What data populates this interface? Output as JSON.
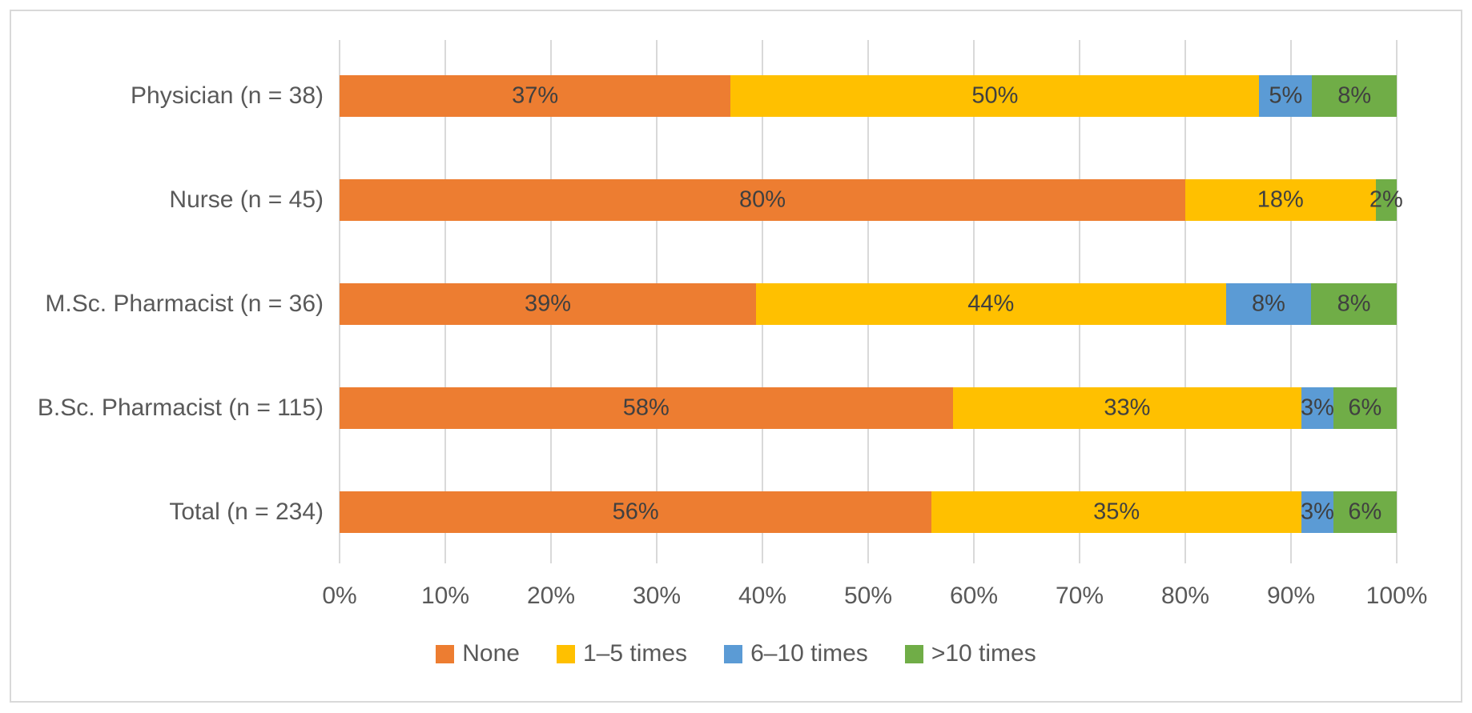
{
  "chart_data": {
    "type": "bar",
    "stacked": true,
    "percent_stacked": true,
    "orientation": "horizontal",
    "title": "",
    "categories": [
      "Physician (n = 38)",
      "Nurse (n = 45)",
      "M.Sc. Pharmacist (n = 36)",
      "B.Sc. Pharmacist (n = 115)",
      "Total (n = 234)"
    ],
    "series": [
      {
        "name": "None",
        "color": "#ED7D31",
        "values": [
          37,
          80,
          39,
          58,
          56
        ]
      },
      {
        "name": "1–5 times",
        "color": "#FFC000",
        "values": [
          50,
          18,
          44,
          33,
          35
        ]
      },
      {
        "name": "6–10 times",
        "color": "#5B9BD5",
        "values": [
          5,
          0,
          8,
          3,
          3
        ]
      },
      {
        "name": ">10 times",
        "color": "#70AD47",
        "values": [
          8,
          2,
          8,
          6,
          6
        ]
      }
    ],
    "data_label_suffix": "%",
    "x_ticks": [
      "0%",
      "10%",
      "20%",
      "30%",
      "40%",
      "50%",
      "60%",
      "70%",
      "80%",
      "90%",
      "100%"
    ],
    "xlabel": "",
    "ylabel": "",
    "xlim": [
      0,
      100
    ],
    "grid": true,
    "legend_position": "bottom"
  },
  "colors": {
    "background": "#FFFFFF",
    "frame_border": "#D9D9D9",
    "gridline": "#D9D9D9",
    "axis_text": "#595959",
    "data_label_text": "#404040"
  }
}
